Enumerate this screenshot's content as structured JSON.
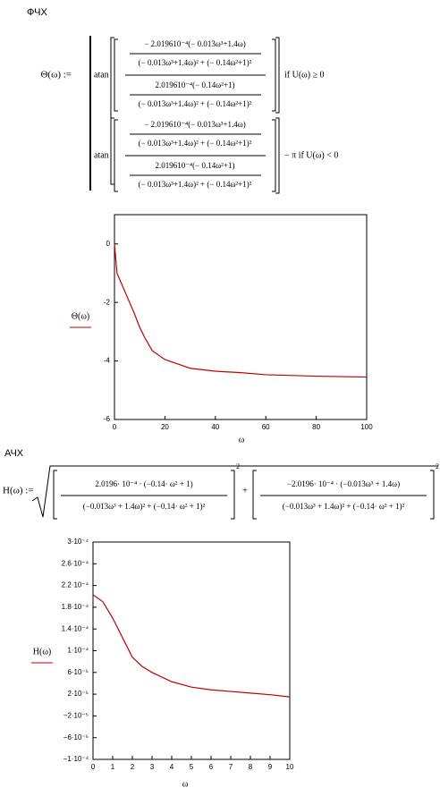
{
  "document": {
    "phase_heading": "ФЧХ",
    "phase_formula": {
      "lhs": "Θ(ω) :=",
      "cases": [
        {
          "fn": "atan",
          "num_num": "− 2.019610⁻⁴(− 0.013ω³+1.4ω)",
          "num_den": "(− 0.013ω³+1.4ω)² + (− 0.14ω²+1)²",
          "den_num": "2.019610⁻⁴(− 0.14ω²+1)",
          "den_den": "(− 0.013ω³+1.4ω)² + (− 0.14ω²+1)²",
          "tail": "if  U(ω)  ≥  0"
        },
        {
          "fn": "atan",
          "num_num": "− 2.019610⁻⁴(− 0.013ω³+1.4ω)",
          "num_den": "(− 0.013ω³+1.4ω)² + (− 0.14ω²+1)²",
          "den_num": "2.019610⁻⁴(− 0.14ω²+1)",
          "den_den": "(− 0.013ω³+1.4ω)² + (− 0.14ω²+1)²",
          "tail": "− π   if  U(ω)  <  0"
        }
      ]
    },
    "amp_heading": "АЧХ",
    "amp_formula": {
      "lhs": "H(ω) :=",
      "terms": [
        {
          "num": "2.0196· 10⁻⁴ · (−0.14· ω² + 1)",
          "den": "(−0.013ω³ + 1.4ω)² + (−0.14· ω² + 1)²",
          "power": "2"
        },
        {
          "num": "−2.0196· 10⁻⁴ · (−0.013ω³ + 1.4ω)",
          "den": "(−0.013ω³ + 1.4ω)² + (−0.14· ω² + 1)²",
          "power": "2"
        }
      ],
      "op": "+"
    }
  },
  "chart_data": [
    {
      "type": "line",
      "x_label": "ω",
      "y_label": "Θ(ω)",
      "color": "#c00000",
      "x": [
        0,
        1,
        3,
        5,
        8,
        10,
        12,
        15,
        20,
        25,
        30,
        40,
        50,
        60,
        80,
        100
      ],
      "values": [
        0,
        -1.0,
        -1.4,
        -1.8,
        -2.4,
        -2.85,
        -3.2,
        -3.65,
        -3.95,
        -4.1,
        -4.25,
        -4.35,
        -4.4,
        -4.47,
        -4.52,
        -4.55
      ],
      "xlim": [
        0,
        100
      ],
      "xticks": [
        0,
        20,
        40,
        60,
        80,
        100
      ],
      "ylim": [
        -6,
        1
      ],
      "yticks": [
        -6,
        -4,
        -2,
        0
      ],
      "grid": false
    },
    {
      "type": "line",
      "x_label": "ω",
      "y_label": "H(ω)",
      "color": "#c00000",
      "x": [
        0,
        0.5,
        1,
        1.5,
        2,
        2.5,
        3,
        4,
        5,
        6,
        7,
        8,
        9,
        10
      ],
      "values": [
        0.000203,
        0.00019,
        0.00016,
        0.000124,
        8.8e-05,
        7.1e-05,
        6e-05,
        4.3e-05,
        3.3e-05,
        2.8e-05,
        2.5e-05,
        2.2e-05,
        1.9e-05,
        1.5e-05
      ],
      "xlim": [
        0,
        10
      ],
      "xticks": [
        0,
        1,
        2,
        3,
        4,
        5,
        6,
        7,
        8,
        9,
        10
      ],
      "ylim": [
        -0.0001,
        0.0003
      ],
      "yticks": [
        {
          "value": -0.0001,
          "label": "−1·10⁻⁴"
        },
        {
          "value": -6e-05,
          "label": "−6·10⁻⁵"
        },
        {
          "value": -2e-05,
          "label": "−2·10⁻⁵"
        },
        {
          "value": 2e-05,
          "label": "2·10⁻⁵"
        },
        {
          "value": 6e-05,
          "label": "6·10⁻⁵"
        },
        {
          "value": 0.0001,
          "label": "1·10⁻⁴"
        },
        {
          "value": 0.00014,
          "label": "1.4·10⁻⁴"
        },
        {
          "value": 0.00018,
          "label": "1.8·10⁻⁴"
        },
        {
          "value": 0.00022,
          "label": "2.2·10⁻⁴"
        },
        {
          "value": 0.00026,
          "label": "2.6·10⁻⁴"
        },
        {
          "value": 0.0003,
          "label": "3·10⁻⁴"
        }
      ],
      "grid": false
    }
  ]
}
